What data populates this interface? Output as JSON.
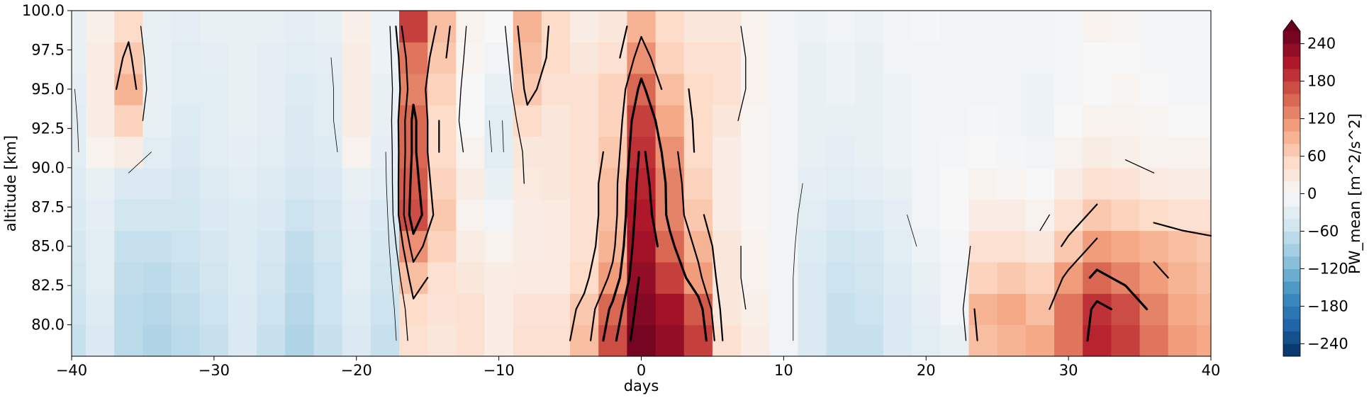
{
  "chart_data": {
    "type": "heatmap",
    "title": "",
    "xlabel": "days",
    "ylabel": "altitude [km]",
    "xlim": [
      -40,
      40
    ],
    "ylim": [
      78,
      100
    ],
    "x_ticks": [
      -40,
      -30,
      -20,
      -10,
      0,
      10,
      20,
      30,
      40
    ],
    "x_tick_labels": [
      "−40",
      "−30",
      "−20",
      "−10",
      "0",
      "10",
      "20",
      "30",
      "40"
    ],
    "y_ticks": [
      80.0,
      82.5,
      85.0,
      87.5,
      90.0,
      92.5,
      95.0,
      97.5,
      100.0
    ],
    "y_tick_labels": [
      "80.0",
      "82.5",
      "85.0",
      "87.5",
      "90.0",
      "92.5",
      "95.0",
      "97.5",
      "100.0"
    ],
    "colormap": "RdBu_r",
    "colorbar": {
      "label": "PW_mean [m^2/s^2]",
      "range": [
        -260,
        260
      ],
      "extend": "max",
      "ticks": [
        -240,
        -180,
        -120,
        -60,
        0,
        60,
        120,
        180,
        240
      ],
      "tick_labels": [
        "−240",
        "−180",
        "−120",
        "−60",
        "0",
        "60",
        "120",
        "180",
        "240"
      ]
    },
    "colors": {
      "cmap_stops": [
        "#053061",
        "#2166ac",
        "#4393c3",
        "#92c5de",
        "#d1e5f0",
        "#f7f7f7",
        "#fddbc7",
        "#f4a582",
        "#d6604d",
        "#b2182b",
        "#67001f"
      ]
    },
    "contours": "black lines (thickness proportional to PW_mean level)",
    "days": [
      -40,
      -38,
      -36,
      -34,
      -32,
      -30,
      -28,
      -26,
      -24,
      -22,
      -20,
      -18,
      -16,
      -14,
      -12,
      -10,
      -8,
      -6,
      -4,
      -2,
      0,
      2,
      4,
      6,
      8,
      10,
      12,
      14,
      16,
      18,
      20,
      22,
      24,
      26,
      28,
      30,
      32,
      34,
      36,
      38,
      40
    ],
    "altitudes": [
      79,
      81,
      83,
      85,
      87,
      89,
      91,
      93,
      95,
      97,
      99
    ],
    "values_by_altitude": [
      [
        -60,
        -40,
        -70,
        -80,
        -70,
        -60,
        -40,
        -60,
        -80,
        -60,
        -40,
        -60,
        40,
        30,
        40,
        20,
        40,
        40,
        80,
        170,
        250,
        230,
        180,
        40,
        20,
        -10,
        -40,
        -60,
        -60,
        -40,
        -30,
        -20,
        80,
        90,
        100,
        140,
        200,
        180,
        140,
        110,
        100
      ],
      [
        -55,
        -35,
        -70,
        -75,
        -65,
        -55,
        -40,
        -55,
        -75,
        -55,
        -35,
        -55,
        50,
        35,
        40,
        20,
        35,
        35,
        70,
        150,
        240,
        220,
        160,
        30,
        15,
        -10,
        -40,
        -60,
        -55,
        -40,
        -25,
        -10,
        90,
        100,
        80,
        140,
        190,
        170,
        130,
        100,
        90
      ],
      [
        -50,
        -30,
        -65,
        -70,
        -60,
        -50,
        -35,
        -50,
        -70,
        -55,
        -30,
        -50,
        80,
        40,
        30,
        20,
        25,
        25,
        50,
        110,
        230,
        180,
        110,
        30,
        10,
        -10,
        -40,
        -55,
        -50,
        -35,
        -20,
        -10,
        60,
        70,
        60,
        110,
        150,
        130,
        110,
        90,
        80
      ],
      [
        -45,
        -30,
        -60,
        -60,
        -55,
        -45,
        -35,
        -45,
        -65,
        -50,
        -30,
        -45,
        120,
        60,
        20,
        10,
        20,
        25,
        40,
        90,
        220,
        150,
        90,
        30,
        10,
        -10,
        -35,
        -50,
        -45,
        -30,
        -15,
        -5,
        40,
        40,
        30,
        70,
        110,
        100,
        90,
        80,
        70
      ],
      [
        -40,
        -25,
        -50,
        -50,
        -50,
        -40,
        -35,
        -40,
        -55,
        -45,
        -25,
        -40,
        170,
        70,
        10,
        -10,
        20,
        25,
        40,
        80,
        210,
        130,
        70,
        20,
        5,
        -10,
        -30,
        -40,
        -35,
        -25,
        -10,
        0,
        20,
        20,
        10,
        40,
        70,
        60,
        50,
        40,
        40
      ],
      [
        -35,
        -20,
        -40,
        -40,
        -45,
        -35,
        -30,
        -35,
        -45,
        -40,
        -20,
        -30,
        160,
        60,
        20,
        -20,
        25,
        30,
        40,
        80,
        200,
        130,
        60,
        20,
        5,
        -10,
        -25,
        -30,
        -25,
        -20,
        -10,
        0,
        10,
        5,
        0,
        20,
        40,
        35,
        25,
        20,
        20
      ],
      [
        -30,
        10,
        20,
        -30,
        -40,
        -30,
        -25,
        -30,
        -40,
        -35,
        10,
        -25,
        150,
        50,
        10,
        -30,
        30,
        30,
        40,
        70,
        190,
        120,
        50,
        20,
        5,
        -10,
        -20,
        -25,
        -20,
        -15,
        -10,
        -5,
        0,
        -5,
        -10,
        10,
        20,
        15,
        10,
        10,
        10
      ],
      [
        -30,
        20,
        60,
        -20,
        -35,
        -30,
        -20,
        -25,
        -40,
        -30,
        20,
        -20,
        150,
        50,
        0,
        -30,
        50,
        30,
        40,
        60,
        180,
        100,
        50,
        30,
        5,
        -10,
        -20,
        -20,
        -20,
        -15,
        -10,
        -10,
        -5,
        -10,
        -15,
        0,
        10,
        10,
        5,
        0,
        0
      ],
      [
        -25,
        20,
        90,
        -20,
        -30,
        -30,
        -20,
        -25,
        -35,
        -30,
        20,
        -20,
        130,
        60,
        0,
        -20,
        70,
        40,
        40,
        60,
        150,
        80,
        50,
        40,
        10,
        -10,
        -20,
        -15,
        -20,
        -15,
        -10,
        -10,
        -10,
        -10,
        -15,
        -5,
        0,
        5,
        0,
        -5,
        -5
      ],
      [
        -20,
        20,
        70,
        -20,
        -30,
        -25,
        -20,
        -25,
        -30,
        -25,
        20,
        -15,
        140,
        70,
        5,
        -10,
        80,
        50,
        30,
        40,
        120,
        60,
        40,
        40,
        10,
        -10,
        -20,
        -15,
        -20,
        -10,
        -10,
        -10,
        -10,
        -10,
        -10,
        -5,
        0,
        0,
        -5,
        -5,
        -5
      ],
      [
        -20,
        15,
        50,
        -20,
        -25,
        -20,
        -20,
        -20,
        -25,
        -20,
        15,
        -15,
        180,
        80,
        10,
        0,
        90,
        50,
        20,
        30,
        90,
        50,
        30,
        30,
        10,
        -10,
        -15,
        -10,
        -15,
        -10,
        -5,
        -10,
        -10,
        -10,
        -10,
        -5,
        10,
        5,
        -5,
        -5,
        -5
      ]
    ]
  }
}
